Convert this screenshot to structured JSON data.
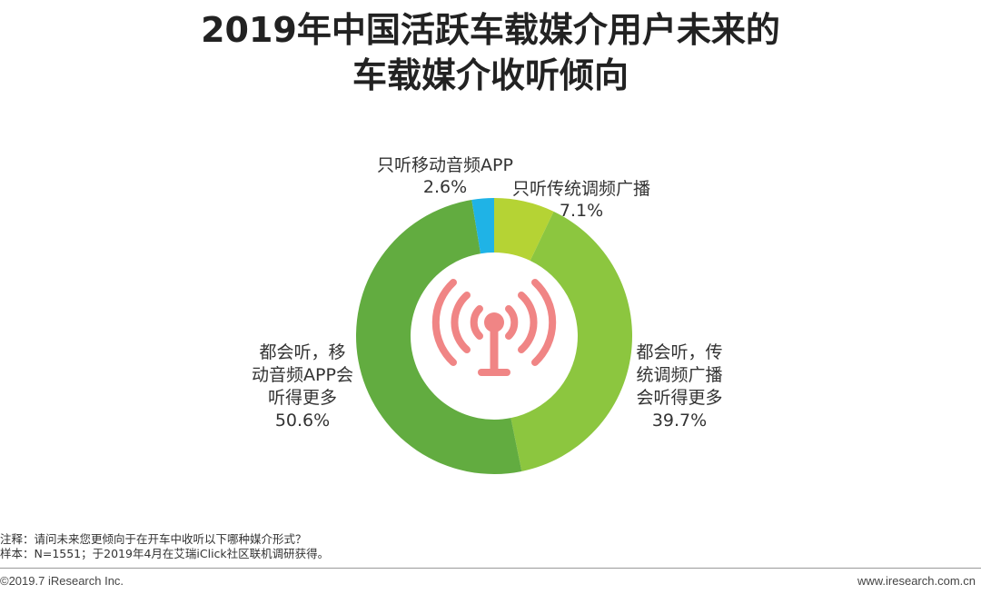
{
  "title_line1": "2019年中国活跃车载媒介用户未来的",
  "title_line2": "车载媒介收听倾向",
  "chart_data": {
    "type": "pie",
    "donut": true,
    "slices": [
      {
        "label": "只听传统调频广播",
        "value": 7.1,
        "value_text": "7.1%",
        "color": "#b5d334"
      },
      {
        "label_lines": [
          "都会听，传",
          "统调频广播",
          "会听得更多"
        ],
        "value": 39.7,
        "value_text": "39.7%",
        "color": "#8cc63f"
      },
      {
        "label_lines": [
          "都会听，移",
          "动音频APP会",
          "听得更多"
        ],
        "value": 50.6,
        "value_text": "50.6%",
        "color": "#62ac40"
      },
      {
        "label": "只听移动音频APP",
        "value": 2.6,
        "value_text": "2.6%",
        "color": "#1fb3e6"
      }
    ],
    "center_icon": "radio-tower-icon",
    "icon_color": "#f08585"
  },
  "notes": {
    "line1": "注释：请问未来您更倾向于在开车中收听以下哪种媒介形式？",
    "line2": "样本：N=1551；于2019年4月在艾瑞iClick社区联机调研获得。"
  },
  "footer": {
    "left": "©2019.7 iResearch Inc.",
    "right": "www.iresearch.com.cn"
  }
}
